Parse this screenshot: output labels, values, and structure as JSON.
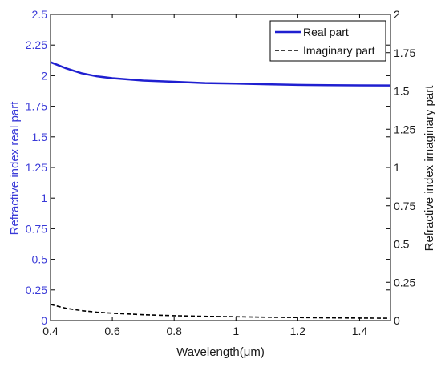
{
  "chart_data": {
    "type": "line",
    "xlabel": "Wavelength(μm)",
    "ylabel_left": "Refractive index real part",
    "ylabel_right": "Refractive index imaginary part",
    "xlim": [
      0.4,
      1.5
    ],
    "ylim_left": [
      0,
      2.5
    ],
    "ylim_right": [
      0,
      2
    ],
    "x_ticks": [
      "0.4",
      "0.6",
      "0.8",
      "1",
      "1.2",
      "1.4"
    ],
    "y_ticks_left": [
      "0",
      "0.25",
      "0.5",
      "0.75",
      "1",
      "1.25",
      "1.5",
      "1.75",
      "2",
      "2.25",
      "2.5"
    ],
    "y_ticks_right": [
      "0",
      "0.25",
      "0.5",
      "0.75",
      "1",
      "1.25",
      "1.5",
      "1.75",
      "2"
    ],
    "grid": false,
    "legend_position": "top-right",
    "colors": {
      "real": "#1f1fd0",
      "imaginary": "#000000",
      "left_axis": "#3a3ad8",
      "right_axis": "#1a1a1a"
    },
    "series": [
      {
        "name": "Real part",
        "axis": "left",
        "style": "solid",
        "x": [
          0.4,
          0.45,
          0.5,
          0.55,
          0.6,
          0.7,
          0.8,
          0.9,
          1.0,
          1.1,
          1.2,
          1.3,
          1.4,
          1.5
        ],
        "y": [
          2.11,
          2.06,
          2.02,
          1.995,
          1.98,
          1.96,
          1.95,
          1.94,
          1.935,
          1.93,
          1.925,
          1.923,
          1.921,
          1.92
        ]
      },
      {
        "name": "Imaginary part",
        "axis": "right",
        "style": "dashed",
        "x": [
          0.4,
          0.45,
          0.5,
          0.55,
          0.6,
          0.7,
          0.8,
          0.9,
          1.0,
          1.1,
          1.2,
          1.3,
          1.4,
          1.5
        ],
        "y": [
          0.105,
          0.08,
          0.065,
          0.055,
          0.048,
          0.038,
          0.032,
          0.028,
          0.025,
          0.022,
          0.02,
          0.018,
          0.016,
          0.015
        ]
      }
    ]
  }
}
